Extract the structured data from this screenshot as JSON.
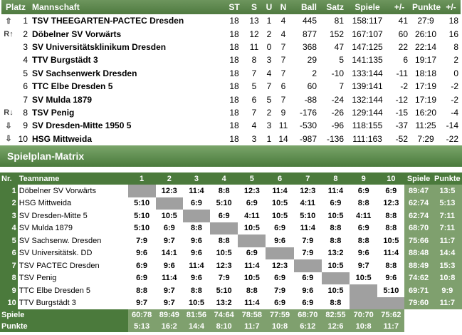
{
  "standings": {
    "headers": [
      "Platz",
      "Mannschaft",
      "ST",
      "S",
      "U",
      "N",
      "Ball",
      "Satz",
      "Spiele",
      "+/-",
      "Punkte",
      "+/-"
    ],
    "rows": [
      {
        "mark": "⇧",
        "place": "1",
        "team": "TSV THEEGARTEN-PACTEC Dresden",
        "st": "18",
        "s": "13",
        "u": "1",
        "n": "4",
        "ball": "445",
        "satz": "81",
        "spiele": "158:117",
        "diff1": "41",
        "punkte": "27:9",
        "diff2": "18"
      },
      {
        "mark": "R↑",
        "place": "2",
        "team": "Döbelner SV Vorwärts",
        "st": "18",
        "s": "12",
        "u": "2",
        "n": "4",
        "ball": "877",
        "satz": "152",
        "spiele": "167:107",
        "diff1": "60",
        "punkte": "26:10",
        "diff2": "16"
      },
      {
        "mark": "",
        "place": "3",
        "team": "SV Universitätsklinikum Dresden",
        "st": "18",
        "s": "11",
        "u": "0",
        "n": "7",
        "ball": "368",
        "satz": "47",
        "spiele": "147:125",
        "diff1": "22",
        "punkte": "22:14",
        "diff2": "8"
      },
      {
        "mark": "",
        "place": "4",
        "team": "TTV Burgstädt 3",
        "st": "18",
        "s": "8",
        "u": "3",
        "n": "7",
        "ball": "29",
        "satz": "5",
        "spiele": "141:135",
        "diff1": "6",
        "punkte": "19:17",
        "diff2": "2"
      },
      {
        "mark": "",
        "place": "5",
        "team": "SV Sachsenwerk Dresden",
        "st": "18",
        "s": "7",
        "u": "4",
        "n": "7",
        "ball": "2",
        "satz": "-10",
        "spiele": "133:144",
        "diff1": "-11",
        "punkte": "18:18",
        "diff2": "0"
      },
      {
        "mark": "",
        "place": "6",
        "team": "TTC Elbe Dresden 5",
        "st": "18",
        "s": "5",
        "u": "7",
        "n": "6",
        "ball": "60",
        "satz": "7",
        "spiele": "139:141",
        "diff1": "-2",
        "punkte": "17:19",
        "diff2": "-2"
      },
      {
        "mark": "",
        "place": "7",
        "team": "SV Mulda 1879",
        "st": "18",
        "s": "6",
        "u": "5",
        "n": "7",
        "ball": "-88",
        "satz": "-24",
        "spiele": "132:144",
        "diff1": "-12",
        "punkte": "17:19",
        "diff2": "-2"
      },
      {
        "mark": "R↓",
        "place": "8",
        "team": "TSV Penig",
        "st": "18",
        "s": "7",
        "u": "2",
        "n": "9",
        "ball": "-176",
        "satz": "-26",
        "spiele": "129:144",
        "diff1": "-15",
        "punkte": "16:20",
        "diff2": "-4"
      },
      {
        "mark": "⇩",
        "place": "9",
        "team": "SV Dresden-Mitte 1950 5",
        "st": "18",
        "s": "4",
        "u": "3",
        "n": "11",
        "ball": "-530",
        "satz": "-96",
        "spiele": "118:155",
        "diff1": "-37",
        "punkte": "11:25",
        "diff2": "-14"
      },
      {
        "mark": "⇩",
        "place": "10",
        "team": "HSG Mittweida",
        "st": "18",
        "s": "3",
        "u": "1",
        "n": "14",
        "ball": "-987",
        "satz": "-136",
        "spiele": "111:163",
        "diff1": "-52",
        "punkte": "7:29",
        "diff2": "-22"
      }
    ]
  },
  "section_title": "Spielplan-Matrix",
  "matrix": {
    "headers": [
      "Nr.",
      "Teamname",
      "1",
      "2",
      "3",
      "4",
      "5",
      "6",
      "7",
      "8",
      "9",
      "10",
      "Spiele",
      "Punkte"
    ],
    "rows": [
      {
        "nr": "1",
        "team": "Döbelner SV Vorwärts",
        "cells": [
          "",
          "12:3",
          "11:4",
          "8:8",
          "12:3",
          "11:4",
          "12:3",
          "11:4",
          "6:9",
          "6:9"
        ],
        "spiele": "89:47",
        "punkte": "13:5"
      },
      {
        "nr": "2",
        "team": "HSG Mittweida",
        "cells": [
          "5:10",
          "",
          "6:9",
          "5:10",
          "6:9",
          "10:5",
          "4:11",
          "6:9",
          "8:8",
          "12:3"
        ],
        "spiele": "62:74",
        "punkte": "5:13"
      },
      {
        "nr": "3",
        "team": "SV Dresden-Mitte 5",
        "cells": [
          "5:10",
          "10:5",
          "",
          "6:9",
          "4:11",
          "10:5",
          "5:10",
          "10:5",
          "4:11",
          "8:8"
        ],
        "spiele": "62:74",
        "punkte": "7:11"
      },
      {
        "nr": "4",
        "team": "SV Mulda 1879",
        "cells": [
          "5:10",
          "6:9",
          "8:8",
          "",
          "10:5",
          "6:9",
          "11:4",
          "8:8",
          "6:9",
          "8:8"
        ],
        "spiele": "68:70",
        "punkte": "7:11"
      },
      {
        "nr": "5",
        "team": "SV Sachsenw. Dresden",
        "cells": [
          "7:9",
          "9:7",
          "9:6",
          "8:8",
          "",
          "9:6",
          "7:9",
          "8:8",
          "8:8",
          "10:5"
        ],
        "spiele": "75:66",
        "punkte": "11:7"
      },
      {
        "nr": "6",
        "team": "SV Universitätsk. DD",
        "cells": [
          "9:6",
          "14:1",
          "9:6",
          "10:5",
          "6:9",
          "",
          "7:9",
          "13:2",
          "9:6",
          "11:4"
        ],
        "spiele": "88:48",
        "punkte": "14:4"
      },
      {
        "nr": "7",
        "team": "TSV PACTEC Dresden",
        "cells": [
          "6:9",
          "9:6",
          "11:4",
          "12:3",
          "11:4",
          "12:3",
          "",
          "10:5",
          "9:7",
          "8:8"
        ],
        "spiele": "88:49",
        "punkte": "15:3"
      },
      {
        "nr": "8",
        "team": "TSV Penig",
        "cells": [
          "6:9",
          "11:4",
          "9:6",
          "7:9",
          "10:5",
          "6:9",
          "6:9",
          "",
          "10:5",
          "9:6"
        ],
        "spiele": "74:62",
        "punkte": "10:8"
      },
      {
        "nr": "9",
        "team": "TTC Elbe Dresden 5",
        "cells": [
          "8:8",
          "9:7",
          "8:8",
          "5:10",
          "8:8",
          "7:9",
          "9:6",
          "10:5",
          "",
          "5:10"
        ],
        "spiele": "69:71",
        "punkte": "9:9"
      },
      {
        "nr": "10",
        "team": "TTV Burgstädt 3",
        "cells": [
          "9:7",
          "9:7",
          "10:5",
          "13:2",
          "11:4",
          "6:9",
          "6:9",
          "8:8",
          "",
          ""
        ],
        "spiele": "79:60",
        "punkte": "11:7"
      }
    ],
    "foot_spiele_label": "Spiele",
    "foot_spiele": [
      "60:78",
      "89:49",
      "81:56",
      "74:64",
      "78:58",
      "77:59",
      "68:70",
      "82:55",
      "70:70",
      "75:62"
    ],
    "foot_punkte_label": "Punkte",
    "foot_punkte": [
      "5:13",
      "16:2",
      "14:4",
      "8:10",
      "11:7",
      "10:8",
      "6:12",
      "12:6",
      "10:8",
      "11:7"
    ]
  },
  "colors": {
    "header_green": "#4b7a3c",
    "sum_green": "#7fa06e",
    "diag_gray": "#a0a0a0"
  }
}
